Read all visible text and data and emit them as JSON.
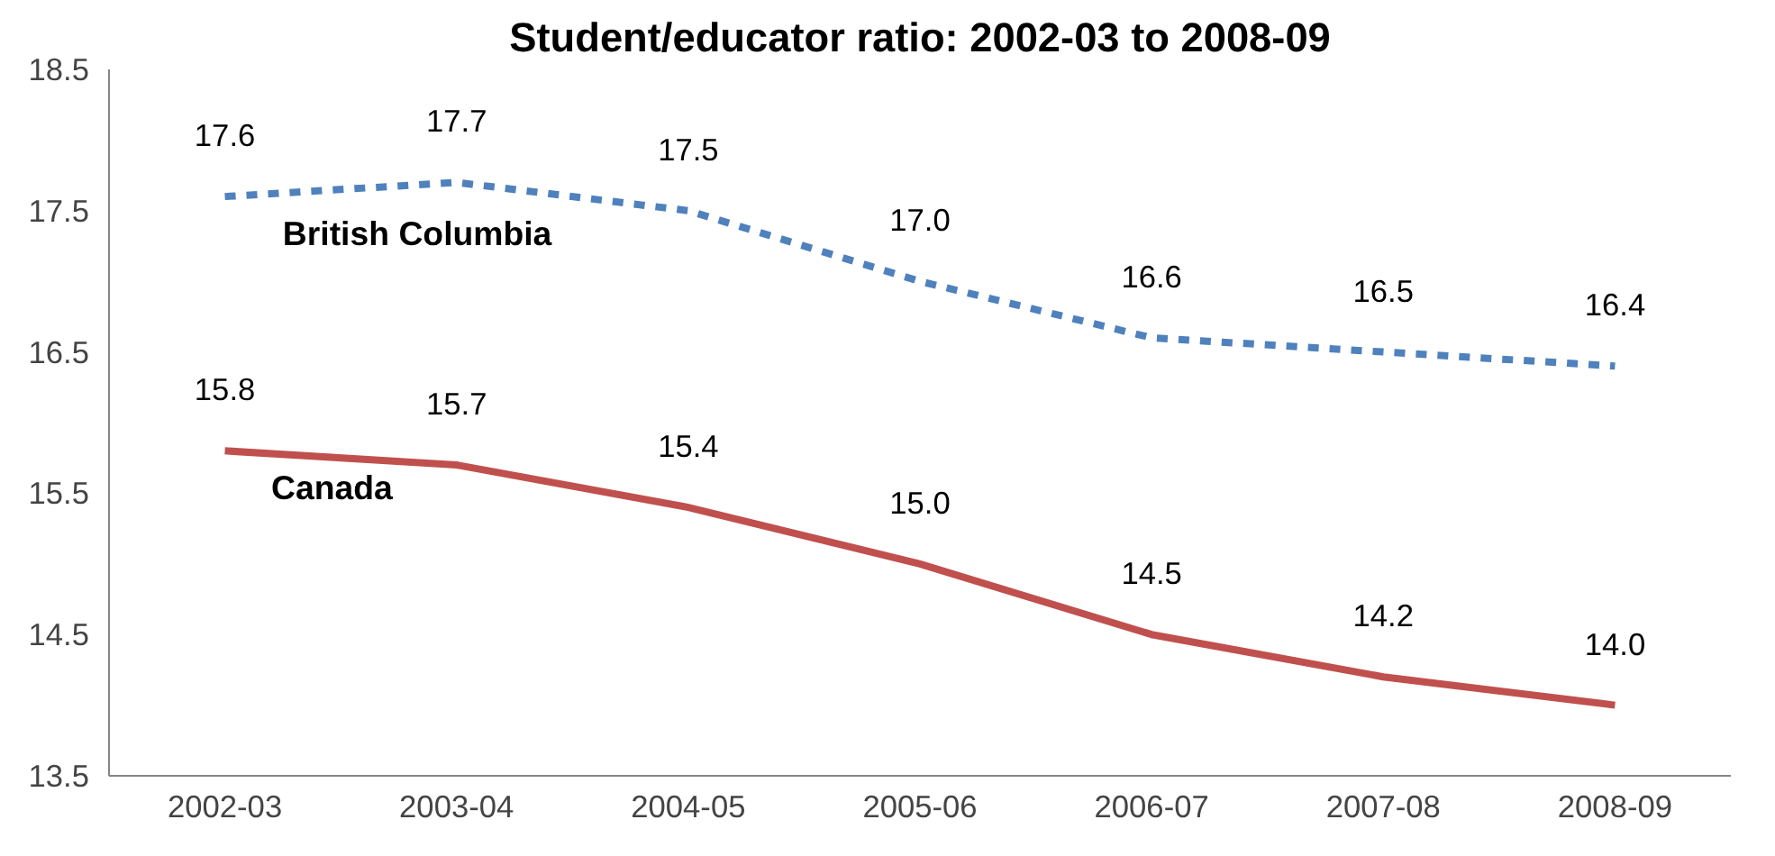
{
  "chart_data": {
    "type": "line",
    "title": "Student/educator ratio: 2002-03 to 2008-09",
    "categories": [
      "2002-03",
      "2003-04",
      "2004-05",
      "2005-06",
      "2006-07",
      "2007-08",
      "2008-09"
    ],
    "series": [
      {
        "name": "British Columbia",
        "color": "#4f81bd",
        "line_style": "dashed",
        "values": [
          17.6,
          17.7,
          17.5,
          17.0,
          16.6,
          16.5,
          16.4
        ],
        "value_labels": [
          "17.6",
          "17.7",
          "17.5",
          "17.0",
          "16.6",
          "16.5",
          "16.4"
        ]
      },
      {
        "name": "Canada",
        "color": "#c0504d",
        "line_style": "solid",
        "values": [
          15.8,
          15.7,
          15.4,
          15.0,
          14.5,
          14.2,
          14.0
        ],
        "value_labels": [
          "15.8",
          "15.7",
          "15.4",
          "15.0",
          "14.5",
          "14.2",
          "14.0"
        ]
      }
    ],
    "ylim": [
      13.5,
      18.5
    ],
    "yticks": [
      13.5,
      14.5,
      15.5,
      16.5,
      17.5,
      18.5
    ],
    "grid": false,
    "marker": "none"
  }
}
